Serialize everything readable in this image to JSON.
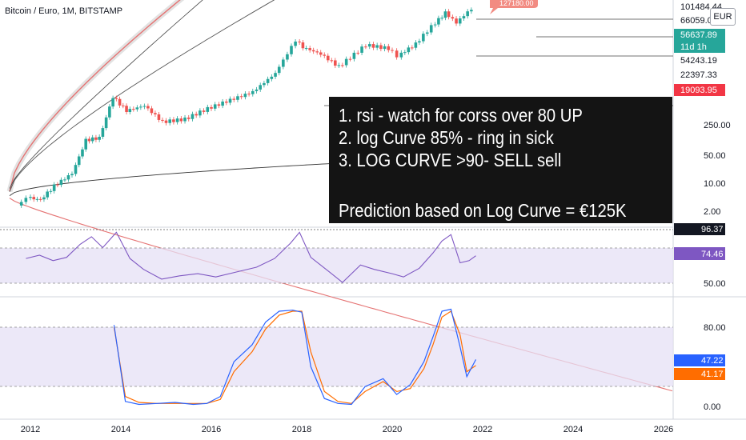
{
  "symbol_title": "Bitcoin / Euro, 1M, BITSTAMP",
  "currency_badge": "EUR",
  "annotation": {
    "lines": [
      "1. rsi - watch for corss over 80 UP",
      "2. log Curve 85% - ring in sick",
      "3. LOG CURVE >90- SELL sell",
      "Prediction based on Log Curve = €125K"
    ]
  },
  "colors": {
    "up": "#26a69a",
    "down": "#ef5350",
    "rsi_line": "#7e57c2",
    "stoch_k": "#2962ff",
    "stoch_d": "#ff6d00",
    "band_fill": "#e6e0f5",
    "curve_red": "#e57373",
    "axis_text": "#131722"
  },
  "chart_data": [
    {
      "type": "candlestick",
      "title": "Bitcoin / Euro, 1M, BITSTAMP",
      "scale": "log",
      "price_axis_labels": [
        "250.00",
        "50.00",
        "10.00",
        "2.00"
      ],
      "price_tags": [
        {
          "label": "101484.44",
          "style": "dark-text"
        },
        {
          "label": "66059.06",
          "style": "dark-text"
        },
        {
          "label": "56637.89",
          "style": "teal"
        },
        {
          "label": "11d 1h",
          "style": "teal"
        },
        {
          "label": "54243.19",
          "style": "dark-text"
        },
        {
          "label": "22397.33",
          "style": "dark-text"
        },
        {
          "label": "19093.95",
          "style": "red"
        },
        {
          "label": "127180.00",
          "style": "callout"
        }
      ],
      "monthly_close_approx": [
        {
          "x": 2011.8,
          "close": 3
        },
        {
          "x": 2012.0,
          "close": 4.5
        },
        {
          "x": 2012.3,
          "close": 4
        },
        {
          "x": 2012.6,
          "close": 8
        },
        {
          "x": 2013.0,
          "close": 15
        },
        {
          "x": 2013.3,
          "close": 80
        },
        {
          "x": 2013.6,
          "close": 90
        },
        {
          "x": 2013.9,
          "close": 700
        },
        {
          "x": 2014.2,
          "close": 350
        },
        {
          "x": 2014.6,
          "close": 450
        },
        {
          "x": 2015.0,
          "close": 200
        },
        {
          "x": 2015.5,
          "close": 230
        },
        {
          "x": 2016.0,
          "close": 390
        },
        {
          "x": 2016.5,
          "close": 600
        },
        {
          "x": 2017.0,
          "close": 900
        },
        {
          "x": 2017.5,
          "close": 2300
        },
        {
          "x": 2017.95,
          "close": 12000
        },
        {
          "x": 2018.1,
          "close": 8500
        },
        {
          "x": 2018.5,
          "close": 6000
        },
        {
          "x": 2018.9,
          "close": 3200
        },
        {
          "x": 2019.5,
          "close": 9500
        },
        {
          "x": 2020.0,
          "close": 8000
        },
        {
          "x": 2020.2,
          "close": 5500
        },
        {
          "x": 2020.6,
          "close": 10000
        },
        {
          "x": 2020.95,
          "close": 24000
        },
        {
          "x": 2021.25,
          "close": 48000
        },
        {
          "x": 2021.5,
          "close": 29000
        },
        {
          "x": 2021.75,
          "close": 50000
        },
        {
          "x": 2021.85,
          "close": 56637.89
        }
      ]
    },
    {
      "type": "line",
      "name": "RSI",
      "axis_labels": [
        "50.00"
      ],
      "tags": [
        {
          "label": "96.37",
          "style": "dark"
        },
        {
          "label": "74.46",
          "style": "purple"
        }
      ],
      "x": [
        2011.9,
        2012.2,
        2012.5,
        2012.8,
        2013.1,
        2013.35,
        2013.6,
        2013.9,
        2014.2,
        2014.5,
        2014.9,
        2015.3,
        2015.7,
        2016.1,
        2016.6,
        2017.0,
        2017.4,
        2017.75,
        2017.95,
        2018.2,
        2018.6,
        2018.9,
        2019.3,
        2019.6,
        2020.0,
        2020.25,
        2020.6,
        2020.9,
        2021.1,
        2021.3,
        2021.5,
        2021.7,
        2021.85
      ],
      "values": [
        72,
        75,
        70,
        73,
        85,
        92,
        82,
        96,
        72,
        62,
        53,
        56,
        58,
        55,
        60,
        64,
        72,
        86,
        96,
        73,
        60,
        50,
        66,
        62,
        58,
        55,
        63,
        77,
        88,
        94,
        68,
        70,
        74.46
      ]
    },
    {
      "type": "line",
      "name": "Stoch RSI",
      "axis_labels": [
        "80.00",
        "0.00"
      ],
      "tags": [
        {
          "label": "47.22",
          "style": "blue"
        },
        {
          "label": "41.17",
          "style": "orange"
        }
      ],
      "x": [
        2013.85,
        2014.1,
        2014.4,
        2014.8,
        2015.2,
        2015.6,
        2015.9,
        2016.2,
        2016.5,
        2016.9,
        2017.2,
        2017.5,
        2017.8,
        2018.0,
        2018.2,
        2018.5,
        2018.8,
        2019.1,
        2019.4,
        2019.8,
        2020.1,
        2020.4,
        2020.7,
        2020.9,
        2021.1,
        2021.3,
        2021.5,
        2021.65,
        2021.85
      ],
      "k": [
        82,
        5,
        2,
        3,
        4,
        2,
        3,
        10,
        45,
        62,
        85,
        96,
        97,
        95,
        40,
        8,
        3,
        2,
        20,
        28,
        12,
        22,
        45,
        70,
        96,
        98,
        60,
        30,
        47.22
      ],
      "d": [
        80,
        10,
        4,
        3,
        3,
        3,
        3,
        7,
        35,
        55,
        78,
        92,
        96,
        96,
        55,
        15,
        5,
        3,
        15,
        25,
        15,
        18,
        38,
        62,
        90,
        96,
        72,
        35,
        41.17
      ]
    }
  ],
  "time_axis_labels": [
    "2012",
    "2014",
    "2016",
    "2018",
    "2020",
    "2022",
    "2024",
    "2026"
  ]
}
